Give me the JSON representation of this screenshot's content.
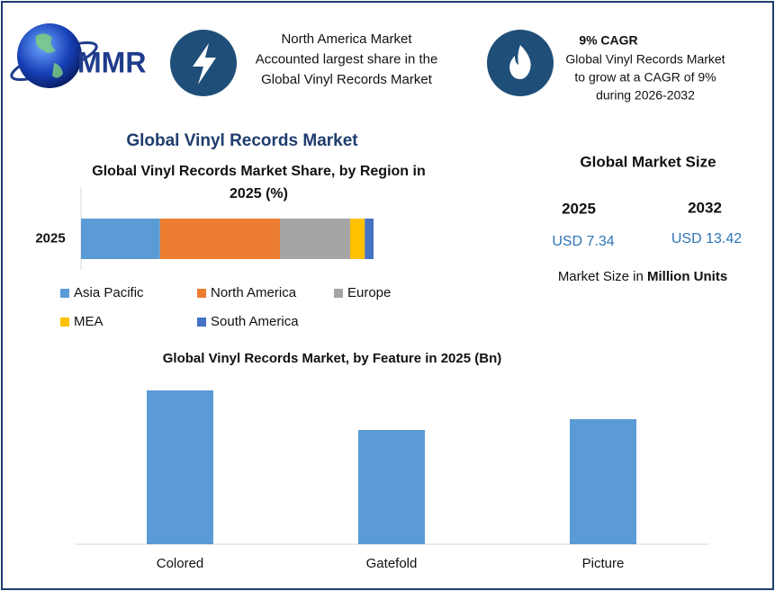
{
  "header": {
    "logo_text": "MMR",
    "info_1": {
      "lines": [
        "North America Market",
        "Accounted largest share in the",
        "Global Vinyl Records Market"
      ]
    },
    "info_2": {
      "heading": "9% CAGR",
      "lines": [
        "Global Vinyl Records Market",
        "to grow at a CAGR of 9%",
        "during 2026-2032"
      ]
    }
  },
  "title": "Global Vinyl Records Market",
  "market_size": {
    "title": "Global Market Size",
    "years": [
      "2025",
      "2032"
    ],
    "values": [
      "USD 7.34",
      "USD 13.42"
    ],
    "note": "Market Size in ",
    "note_bold": "Million Units"
  },
  "chart_data": [
    {
      "type": "stacked-bar",
      "orientation": "horizontal",
      "title": "Global Vinyl Records Market Share, by Region in 2025 (%)",
      "categories": [
        "2025"
      ],
      "series": [
        {
          "name": "Asia Pacific",
          "color": "#5b9bd5",
          "values": [
            27
          ]
        },
        {
          "name": "North America",
          "color": "#ed7d31",
          "values": [
            41
          ]
        },
        {
          "name": "Europe",
          "color": "#a5a5a5",
          "values": [
            24
          ]
        },
        {
          "name": "MEA",
          "color": "#ffc000",
          "values": [
            5
          ]
        },
        {
          "name": "South America",
          "color": "#4472c4",
          "values": [
            3
          ]
        }
      ]
    },
    {
      "type": "bar",
      "title": "Global Vinyl Records Market, by Feature in 2025 (Bn)",
      "categories": [
        "Colored",
        "Gatefold",
        "Picture"
      ],
      "values": [
        1.71,
        1.27,
        1.39
      ],
      "color": "#5b9bd5"
    }
  ]
}
